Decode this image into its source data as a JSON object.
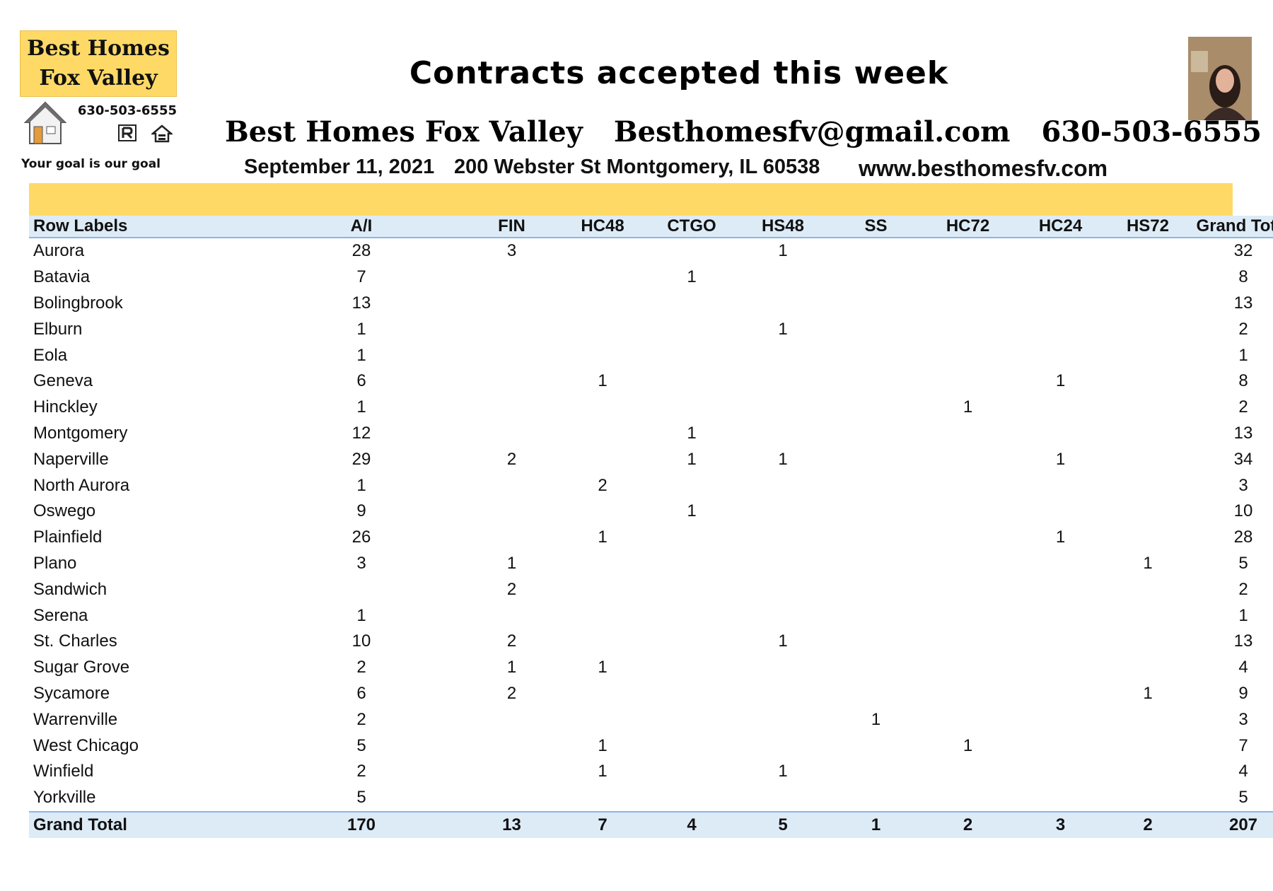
{
  "logo": {
    "line1": "Best Homes",
    "line2": "Fox Valley",
    "phone": "630-503-6555",
    "tagline": "Your goal is our goal",
    "accent": "#ffd966"
  },
  "header": {
    "title": "Contracts accepted this week",
    "company": "Best Homes Fox Valley",
    "email": "Besthomesfv@gmail.com",
    "phone": "630-503-6555",
    "date": "September 11, 2021",
    "address": "200 Webster St Montgomery, IL 60538",
    "website": "www.besthomesfv.com"
  },
  "table": {
    "columns": [
      "Row Labels",
      "A/I",
      "FIN",
      "HC48",
      "CTGO",
      "HS48",
      "SS",
      "HC72",
      "HC24",
      "HS72",
      "Grand Total"
    ],
    "rows": [
      [
        "Aurora",
        "28",
        "3",
        "",
        "",
        "1",
        "",
        "",
        "",
        "",
        "32"
      ],
      [
        "Batavia",
        "7",
        "",
        "",
        "1",
        "",
        "",
        "",
        "",
        "",
        "8"
      ],
      [
        "Bolingbrook",
        "13",
        "",
        "",
        "",
        "",
        "",
        "",
        "",
        "",
        "13"
      ],
      [
        "Elburn",
        "1",
        "",
        "",
        "",
        "1",
        "",
        "",
        "",
        "",
        "2"
      ],
      [
        "Eola",
        "1",
        "",
        "",
        "",
        "",
        "",
        "",
        "",
        "",
        "1"
      ],
      [
        "Geneva",
        "6",
        "",
        "1",
        "",
        "",
        "",
        "",
        "1",
        "",
        "8"
      ],
      [
        "Hinckley",
        "1",
        "",
        "",
        "",
        "",
        "",
        "1",
        "",
        "",
        "2"
      ],
      [
        "Montgomery",
        "12",
        "",
        "",
        "1",
        "",
        "",
        "",
        "",
        "",
        "13"
      ],
      [
        "Naperville",
        "29",
        "2",
        "",
        "1",
        "1",
        "",
        "",
        "1",
        "",
        "34"
      ],
      [
        "North Aurora",
        "1",
        "",
        "2",
        "",
        "",
        "",
        "",
        "",
        "",
        "3"
      ],
      [
        "Oswego",
        "9",
        "",
        "",
        "1",
        "",
        "",
        "",
        "",
        "",
        "10"
      ],
      [
        "Plainfield",
        "26",
        "",
        "1",
        "",
        "",
        "",
        "",
        "1",
        "",
        "28"
      ],
      [
        "Plano",
        "3",
        "1",
        "",
        "",
        "",
        "",
        "",
        "",
        "1",
        "5"
      ],
      [
        "Sandwich",
        "",
        "2",
        "",
        "",
        "",
        "",
        "",
        "",
        "",
        "2"
      ],
      [
        "Serena",
        "1",
        "",
        "",
        "",
        "",
        "",
        "",
        "",
        "",
        "1"
      ],
      [
        "St. Charles",
        "10",
        "2",
        "",
        "",
        "1",
        "",
        "",
        "",
        "",
        "13"
      ],
      [
        "Sugar Grove",
        "2",
        "1",
        "1",
        "",
        "",
        "",
        "",
        "",
        "",
        "4"
      ],
      [
        "Sycamore",
        "6",
        "2",
        "",
        "",
        "",
        "",
        "",
        "",
        "1",
        "9"
      ],
      [
        "Warrenville",
        "2",
        "",
        "",
        "",
        "",
        "1",
        "",
        "",
        "",
        "3"
      ],
      [
        "West Chicago",
        "5",
        "",
        "1",
        "",
        "",
        "",
        "1",
        "",
        "",
        "7"
      ],
      [
        "Winfield",
        "2",
        "",
        "1",
        "",
        "1",
        "",
        "",
        "",
        "",
        "4"
      ],
      [
        "Yorkville",
        "5",
        "",
        "",
        "",
        "",
        "",
        "",
        "",
        "",
        "5"
      ]
    ],
    "total": [
      "Grand Total",
      "170",
      "13",
      "7",
      "4",
      "5",
      "1",
      "2",
      "3",
      "2",
      "207"
    ]
  },
  "colors": {
    "band": "#ffd966",
    "header_fill": "#ddebf7",
    "header_rule": "#8eb4e3"
  }
}
